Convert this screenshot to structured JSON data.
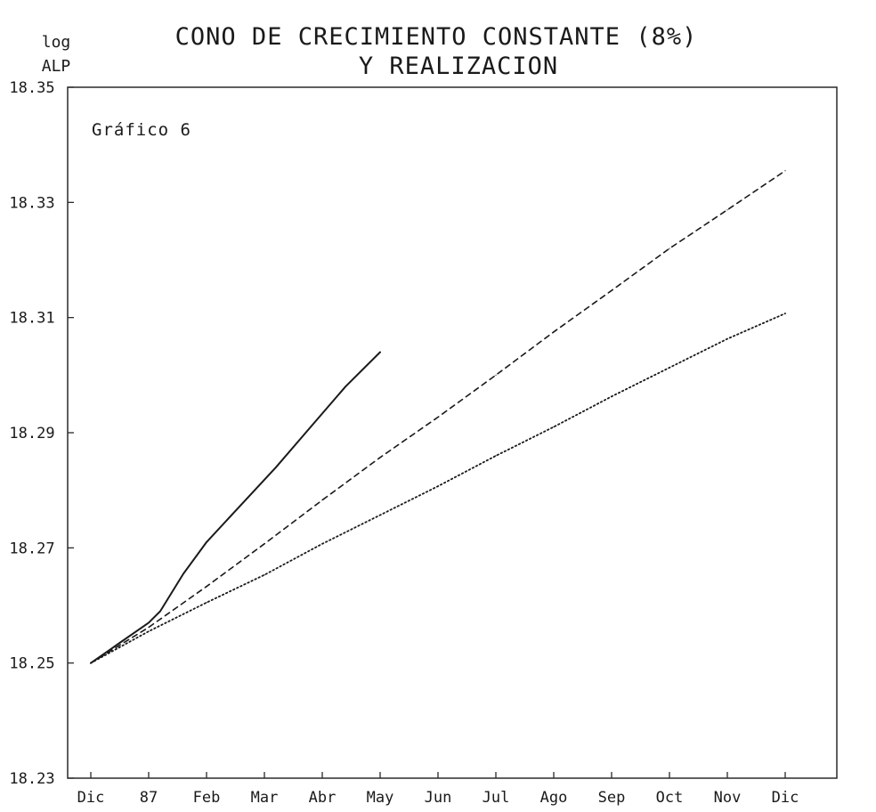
{
  "chart_data": {
    "type": "line",
    "title": [
      "CONO DE CRECIMIENTO CONSTANTE (8%)",
      "Y REALIZACION"
    ],
    "annotation": "Gráfico 6",
    "ylabel": [
      "log",
      "ALP"
    ],
    "xlabel": "",
    "categories": [
      "Dic",
      "87",
      "Feb",
      "Mar",
      "Abr",
      "May",
      "Jun",
      "Jul",
      "Ago",
      "Sep",
      "Oct",
      "Nov",
      "Dic"
    ],
    "ylim": [
      18.23,
      18.35
    ],
    "yticks": [
      18.23,
      18.25,
      18.27,
      18.29,
      18.31,
      18.33,
      18.35
    ],
    "ytick_labels": [
      "18.23",
      "18.25",
      "18.27",
      "18.29",
      "18.31",
      "18.33",
      "18.35"
    ],
    "grid": false,
    "series": [
      {
        "style": "solid",
        "x": [
          0,
          0.5,
          1,
          1.2,
          1.6,
          2.0,
          2.6,
          3.2,
          3.8,
          4.4,
          5.0
        ],
        "y": [
          18.25,
          18.2535,
          18.257,
          18.259,
          18.2655,
          18.271,
          18.2775,
          18.284,
          18.291,
          18.298,
          18.304
        ]
      },
      {
        "style": "dashed",
        "x": [
          0,
          1,
          2,
          3,
          4,
          5,
          6,
          7,
          8,
          9,
          10,
          11,
          12
        ],
        "y": [
          18.25,
          18.2562,
          18.2633,
          18.2707,
          18.2783,
          18.2857,
          18.2927,
          18.3,
          18.3075,
          18.3147,
          18.322,
          18.3287,
          18.3355
        ]
      },
      {
        "style": "dotted",
        "x": [
          0,
          1,
          2,
          3,
          4,
          5,
          6,
          7,
          8,
          9,
          10,
          11,
          12
        ],
        "y": [
          18.25,
          18.2555,
          18.2605,
          18.2653,
          18.2707,
          18.2757,
          18.2807,
          18.286,
          18.291,
          18.2963,
          18.3013,
          18.3063,
          18.3107
        ]
      }
    ]
  }
}
